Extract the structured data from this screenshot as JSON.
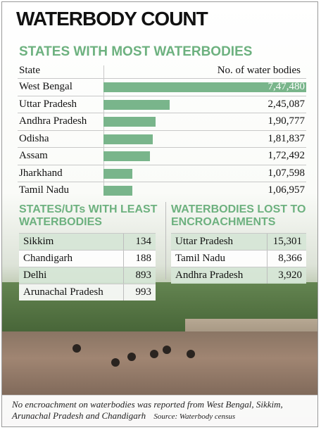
{
  "title": "WATERBODY COUNT",
  "chart_data": [
    {
      "type": "bar",
      "title": "STATES WITH MOST WATERBODIES",
      "header_left": "State",
      "header_right": "No. of water bodies",
      "categories": [
        "West Bengal",
        "Uttar Pradesh",
        "Andhra Pradesh",
        "Odisha",
        "Assam",
        "Jharkhand",
        "Tamil Nadu"
      ],
      "values": [
        747480,
        245087,
        190777,
        181837,
        172492,
        107598,
        106957
      ],
      "value_labels": [
        "7,47,480",
        "2,45,087",
        "1,90,777",
        "1,81,837",
        "1,72,492",
        "1,07,598",
        "1,06,957"
      ],
      "color": "#79b58b"
    },
    {
      "type": "table",
      "title": "STATES/UTs WITH LEAST WATERBODIES",
      "rows": [
        {
          "name": "Sikkim",
          "value": "134"
        },
        {
          "name": "Chandigarh",
          "value": "188"
        },
        {
          "name": "Delhi",
          "value": "893"
        },
        {
          "name": "Arunachal Pradesh",
          "value": "993"
        }
      ]
    },
    {
      "type": "table",
      "title": "WATERBODIES LOST TO ENCROACHMENTS",
      "rows": [
        {
          "name": "Uttar Pradesh",
          "value": "15,301"
        },
        {
          "name": "Tamil Nadu",
          "value": "8,366"
        },
        {
          "name": "Andhra Pradesh",
          "value": "3,920"
        }
      ]
    }
  ],
  "footnote": {
    "text": "No encroachment on waterbodies was reported from West Bengal, Sikkim, Arunachal Pradesh and Chandigarh",
    "source": "Source: Waterbody census"
  },
  "colors": {
    "accent": "#6db17f",
    "bar": "#79b58b"
  }
}
